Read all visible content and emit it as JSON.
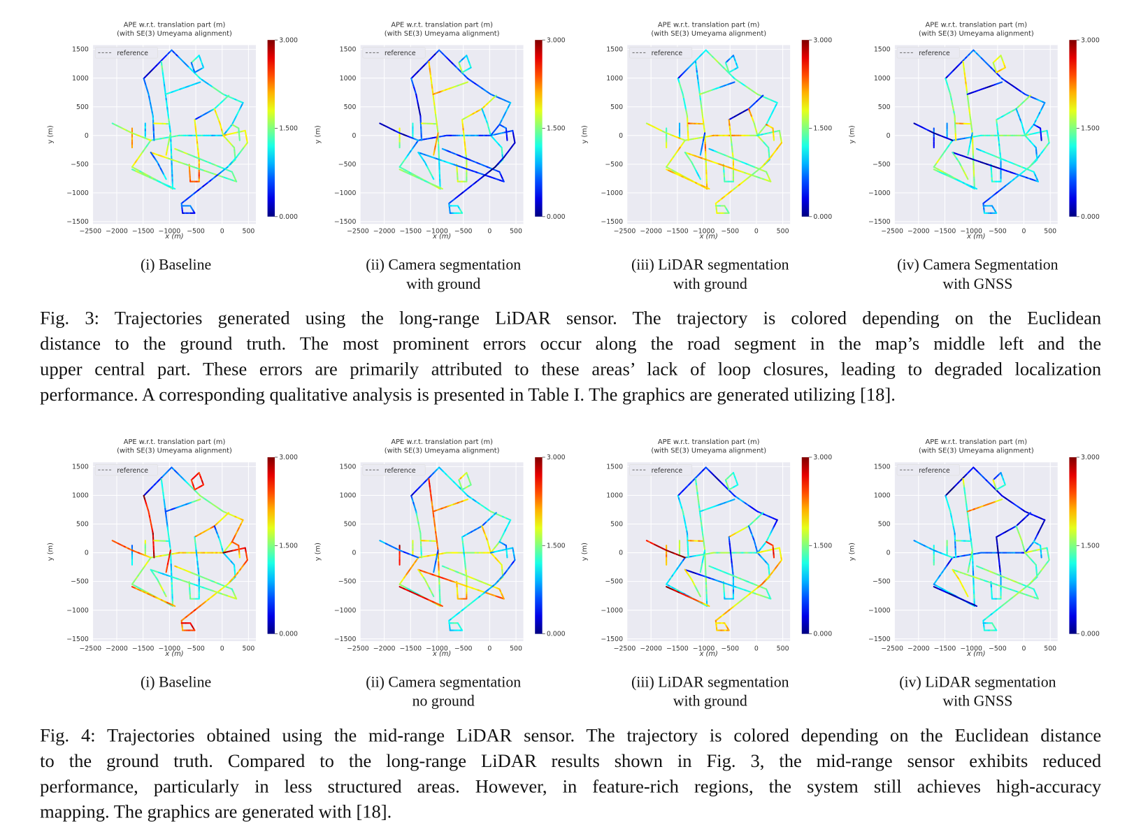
{
  "plot_common": {
    "title_line1": "APE w.r.t. translation part (m)",
    "title_line2": "(with SE(3) Umeyama alignment)",
    "legend_label": "reference",
    "xlabel": "x (m)",
    "ylabel": "y (m)",
    "xticks": [
      "−2500",
      "−2000",
      "−1500",
      "−1000",
      "−500",
      "0",
      "500"
    ],
    "yticks": [
      "1500",
      "1000",
      "500",
      "0",
      "−500",
      "−1000",
      "−1500"
    ],
    "colorbar_ticks": [
      "3.000",
      "1.500",
      "0.000"
    ]
  },
  "figures": [
    {
      "subcaptions": [
        {
          "line1": "(i) Baseline",
          "line2": ""
        },
        {
          "line1": "(ii) Camera segmentation",
          "line2": "with ground"
        },
        {
          "line1": "(iii) LiDAR segmentation",
          "line2": "with ground"
        },
        {
          "line1": "(iv) Camera Segmentation",
          "line2": "with GNSS"
        }
      ],
      "caption_lines": [
        "Fig. 3: Trajectories generated using the long-range LiDAR sensor. The trajectory is colored depending on the Euclidean",
        "distance to the ground truth. The most prominent errors occur along the road segment in the map’s middle left and the",
        "upper central part. These errors are primarily attributed to these areas’ lack of loop closures, leading to degraded localization",
        "performance. A corresponding qualitative analysis is presented in Table I. The graphics are generated utilizing [18]."
      ]
    },
    {
      "subcaptions": [
        {
          "line1": "(i) Baseline",
          "line2": ""
        },
        {
          "line1": "(ii) Camera segmentation",
          "line2": "no ground"
        },
        {
          "line1": "(iii) LiDAR segmentation",
          "line2": "with ground"
        },
        {
          "line1": "(iv) LiDAR segmentation",
          "line2": "with GNSS"
        }
      ],
      "caption_lines": [
        "Fig. 4: Trajectories obtained using the mid-range LiDAR sensor. The trajectory is colored depending on the Euclidean distance",
        "to the ground truth. Compared to the long-range LiDAR results shown in Fig. 3, the mid-range sensor exhibits reduced",
        "performance, particularly in less structured areas. However, in feature-rich regions, the system still achieves high-accuracy",
        "mapping. The graphics are generated with [18]."
      ]
    }
  ],
  "chart_data": {
    "type": "line",
    "description_text": "APE w.r.t. translation part (m)",
    "xlim": [
      -2450,
      640
    ],
    "ylim": [
      -1540,
      1575
    ],
    "colorbar_range": [
      0,
      3
    ],
    "colormap": "jet",
    "grid": true,
    "legend_placement": "top-left"
  }
}
